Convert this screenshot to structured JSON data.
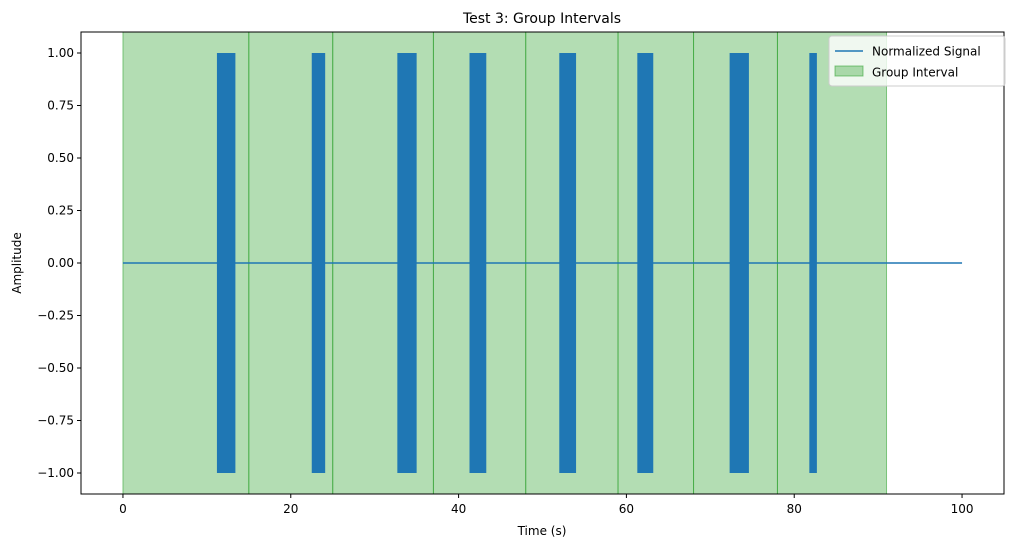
{
  "chart_data": {
    "type": "line",
    "title": "Test 3: Group Intervals",
    "xlabel": "Time (s)",
    "ylabel": "Amplitude",
    "xlim": [
      -5,
      105
    ],
    "ylim": [
      -1.1,
      1.1
    ],
    "xticks": [
      0,
      20,
      40,
      60,
      80,
      100
    ],
    "yticks": [
      -1.0,
      -0.75,
      -0.5,
      -0.25,
      0.0,
      0.25,
      0.5,
      0.75,
      1.0
    ],
    "xtick_labels": [
      "0",
      "20",
      "40",
      "60",
      "80",
      "100"
    ],
    "ytick_labels": [
      "−1.00",
      "−0.75",
      "−0.50",
      "−0.25",
      "0.00",
      "0.25",
      "0.50",
      "0.75",
      "1.00"
    ],
    "grid": false,
    "legend_placement": "top-right",
    "series": [
      {
        "name": "Normalized Signal",
        "color": "#1f77b4",
        "baseline": 0.0,
        "x_range": [
          0,
          100
        ],
        "bursts": [
          {
            "start": 11.2,
            "end": 13.4,
            "amplitude": 1.0
          },
          {
            "start": 22.5,
            "end": 24.1,
            "amplitude": 1.0
          },
          {
            "start": 32.7,
            "end": 35.0,
            "amplitude": 1.0
          },
          {
            "start": 41.3,
            "end": 43.3,
            "amplitude": 1.0
          },
          {
            "start": 52.0,
            "end": 54.0,
            "amplitude": 1.0
          },
          {
            "start": 61.3,
            "end": 63.2,
            "amplitude": 1.0
          },
          {
            "start": 72.3,
            "end": 74.6,
            "amplitude": 1.0
          },
          {
            "start": 81.8,
            "end": 82.7,
            "amplitude": 1.0
          }
        ]
      },
      {
        "name": "Group Interval",
        "color": "#2ca02c",
        "fill_alpha": 0.36,
        "intervals": [
          [
            0,
            15
          ],
          [
            15,
            25
          ],
          [
            25,
            37
          ],
          [
            37,
            48
          ],
          [
            48,
            59
          ],
          [
            59,
            68
          ],
          [
            68,
            78
          ],
          [
            78,
            91
          ]
        ]
      }
    ]
  }
}
